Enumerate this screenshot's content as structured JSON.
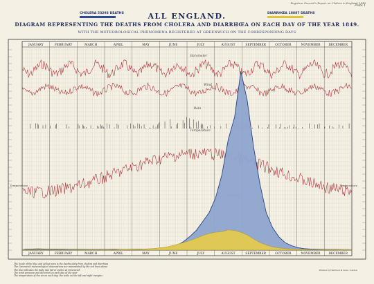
{
  "header": {
    "note": "Registrar General's Report on Cholera in England, 1849",
    "page": "Plate 1"
  },
  "title": {
    "main": "ALL ENGLAND.",
    "sub": "DIAGRAM REPRESENTING THE DEATHS FROM CHOLERA AND DIARRHŒA ON EACH DAY OF THE YEAR 1849.",
    "subsub": "WITH THE METEOROLOGICAL PHENOMENA REGISTERED AT GREENWICH ON THE CORRESPONDING DAYS"
  },
  "legend": {
    "cholera": {
      "label": "CHOLERA 53293 DEATHS",
      "color": "#2b4a92"
    },
    "diarrhoea": {
      "label": "DIARRHŒA 18887 DEATHS",
      "color": "#e2c43c"
    }
  },
  "colors": {
    "met": "#b1343a",
    "rain": "#2a2a2a",
    "grid": "#c4c0b0",
    "cholera_dark": "#1f3a7e",
    "cholera_fill": "#8fa6cf",
    "diarrhoea_fill": "#e6cb4c",
    "diarrhoea_line": "#b08c1c"
  },
  "chart_data": {
    "type": "area",
    "months": [
      "JANUARY",
      "FEBRUARY",
      "MARCH",
      "APRIL",
      "MAY",
      "JUNE",
      "JULY",
      "AUGUST",
      "SEPTEMBER",
      "OCTOBER",
      "NOVEMBER",
      "DECEMBER"
    ],
    "bottom_months": [
      "JANUARY",
      "FEBRUARY",
      "MARCH",
      "APRIL",
      "MAY",
      "JUNE",
      "JULY",
      "AUGUST",
      "SEPTEMBER",
      "OCTOBER",
      "NOVEMBER",
      "DECEMBER"
    ],
    "panels": [
      {
        "name": "Barometer"
      },
      {
        "name": "Wind"
      },
      {
        "name": "Rain"
      },
      {
        "name": "Temperature"
      }
    ],
    "y_axis_label": "Temperature",
    "series": [
      {
        "name": "Cholera",
        "daily_deaths_by_week": [
          8,
          9,
          10,
          9,
          8,
          7,
          7,
          6,
          6,
          6,
          5,
          5,
          6,
          6,
          7,
          6,
          6,
          7,
          8,
          9,
          10,
          12,
          18,
          25,
          40,
          70,
          110,
          160,
          230,
          310,
          430,
          620,
          870,
          1100,
          1450,
          1200,
          820,
          520,
          300,
          180,
          110,
          60,
          35,
          20,
          12,
          9,
          7,
          6,
          5,
          5,
          4,
          4
        ],
        "total_deaths": 53293
      },
      {
        "name": "Diarrhœa",
        "daily_deaths_by_week": [
          5,
          5,
          5,
          5,
          5,
          4,
          4,
          4,
          4,
          4,
          4,
          4,
          5,
          5,
          5,
          6,
          6,
          7,
          8,
          9,
          12,
          18,
          24,
          34,
          48,
          60,
          80,
          98,
          118,
          132,
          140,
          150,
          160,
          155,
          140,
          120,
          90,
          60,
          40,
          26,
          18,
          12,
          9,
          7,
          6,
          5,
          5,
          5,
          5,
          5,
          5,
          5
        ],
        "total_deaths": 18887
      }
    ],
    "annotations": [
      "Dewpoint"
    ]
  },
  "footnotes": {
    "lines": [
      "The Scale of the blue and yellow area is the deaths daily from cholera and diarrhœa",
      "The Greenwich meteorological observations are represented by the red lines above",
      "The line indicates the daily rain fall in inches at Greenwich",
      "The wind pressure and direction on each day of the year",
      "The temperature of the air on each day: the scale on the left and right margins"
    ],
    "imprint": "Printed by Harrison & Sons, London"
  }
}
